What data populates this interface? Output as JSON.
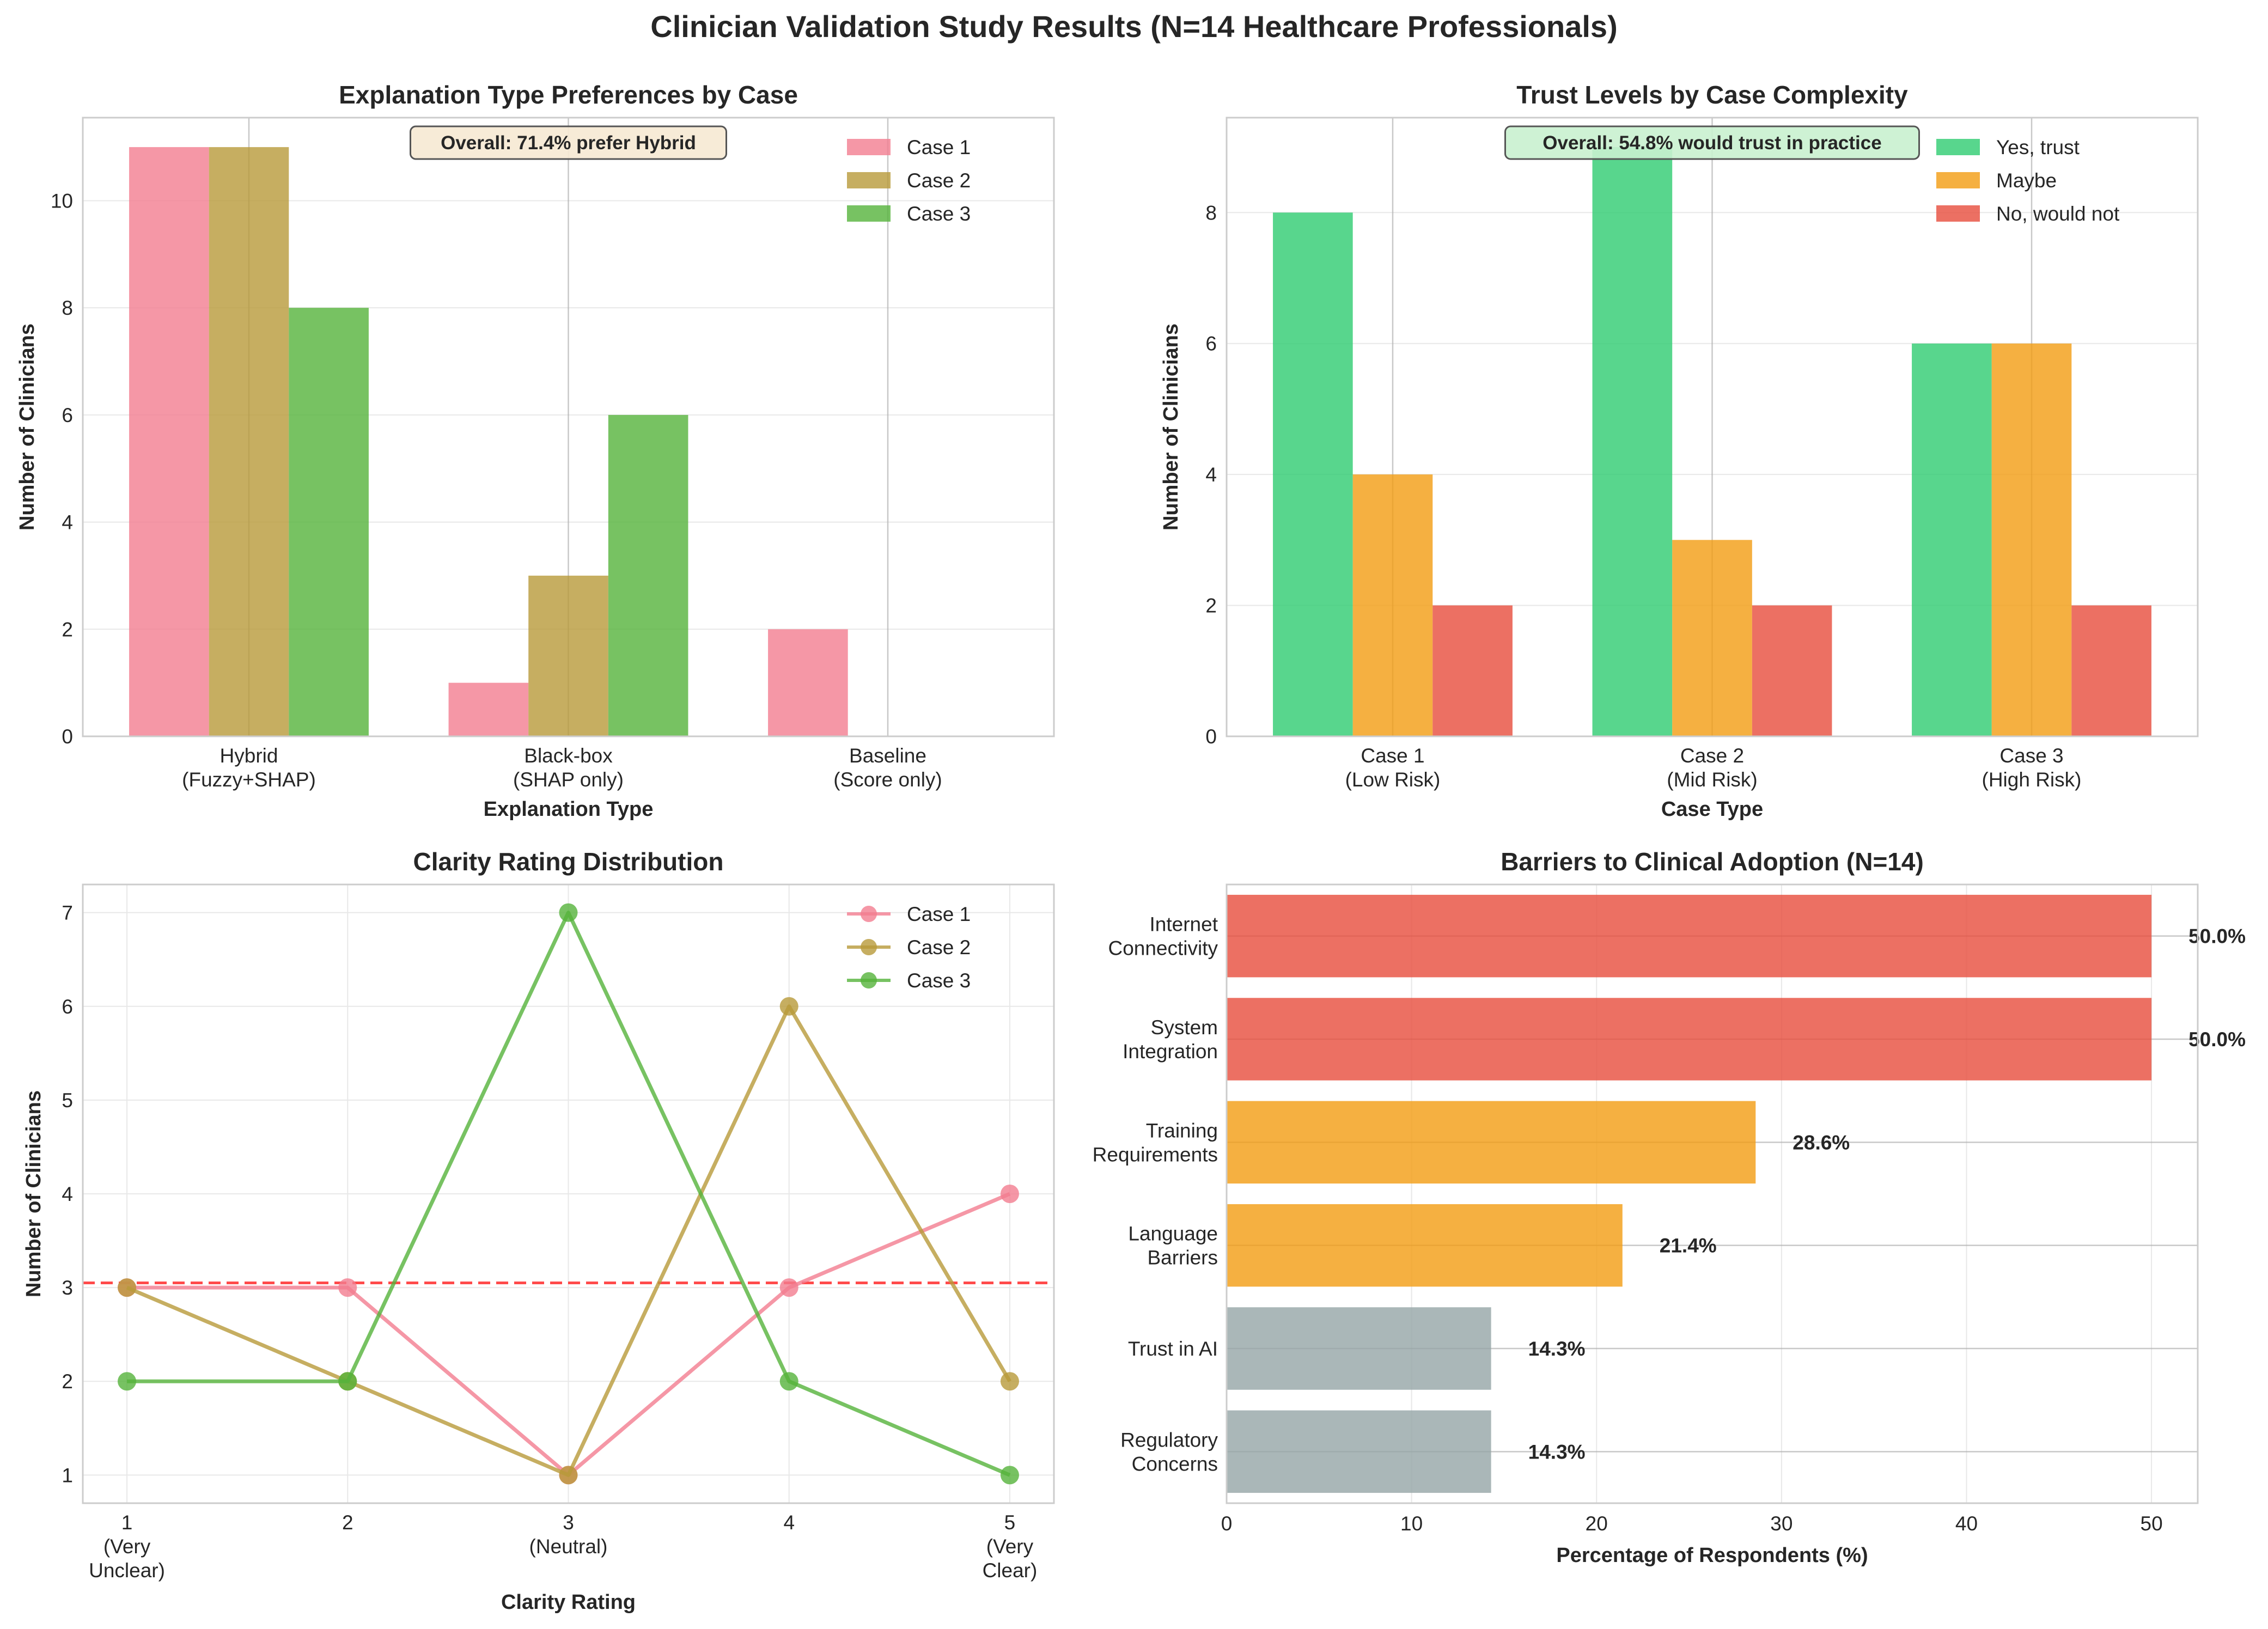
{
  "figure": {
    "title": "Clinician Validation Study Results (N=14 Healthcare Professionals)"
  },
  "chart_data": [
    {
      "type": "bar",
      "title": "Explanation Type Preferences by Case",
      "xlabel": "Explanation Type",
      "ylabel": "Number of Clinicians",
      "categories": [
        "Hybrid\n(Fuzzy+SHAP)",
        "Black-box\n(SHAP only)",
        "Baseline\n(Score only)"
      ],
      "series": [
        {
          "name": "Case 1",
          "values": [
            11,
            1,
            2
          ],
          "color": "#f27d90"
        },
        {
          "name": "Case 2",
          "values": [
            11,
            3,
            0
          ],
          "color": "#b89a3a"
        },
        {
          "name": "Case 3",
          "values": [
            8,
            6,
            0
          ],
          "color": "#55b33b"
        }
      ],
      "ylim": [
        0,
        11.55
      ],
      "yticks": [
        0,
        2,
        4,
        6,
        8,
        10
      ],
      "annotation": {
        "text": "Overall: 71.4% prefer Hybrid",
        "bg": "#f6e9d3"
      },
      "legend": "top-right"
    },
    {
      "type": "bar",
      "title": "Trust Levels by Case Complexity",
      "xlabel": "Case Type",
      "ylabel": "Number of Clinicians",
      "categories": [
        "Case 1\n(Low Risk)",
        "Case 2\n(Mid Risk)",
        "Case 3\n(High Risk)"
      ],
      "series": [
        {
          "name": "Yes, trust",
          "values": [
            8,
            9,
            6
          ],
          "color": "#2ecc71"
        },
        {
          "name": "Maybe",
          "values": [
            4,
            3,
            6
          ],
          "color": "#f39c12"
        },
        {
          "name": "No, would not",
          "values": [
            2,
            2,
            2
          ],
          "color": "#e74c3c"
        }
      ],
      "ylim": [
        0,
        9.45
      ],
      "yticks": [
        0,
        2,
        4,
        6,
        8
      ],
      "annotation": {
        "text": "Overall: 54.8% would trust in practice",
        "bg": "#c9f1cf"
      },
      "legend": "top-right"
    },
    {
      "type": "line",
      "title": "Clarity Rating Distribution",
      "xlabel": "Clarity Rating",
      "ylabel": "Number of Clinicians",
      "x": [
        1,
        2,
        3,
        4,
        5
      ],
      "xticklabels": [
        "1\n(Very\nUnclear)",
        "2",
        "3\n(Neutral)",
        "4",
        "5\n(Very\nClear)"
      ],
      "series": [
        {
          "name": "Case 1",
          "values": [
            3,
            3,
            1,
            3,
            4
          ],
          "color": "#f27d90"
        },
        {
          "name": "Case 2",
          "values": [
            3,
            2,
            1,
            6,
            2
          ],
          "color": "#b89a3a"
        },
        {
          "name": "Case 3",
          "values": [
            2,
            2,
            7,
            2,
            1
          ],
          "color": "#55b33b"
        }
      ],
      "reference_line": {
        "y": 3.05,
        "color": "#ff2b2b",
        "style": "dashed"
      },
      "xlim": [
        0.8,
        5.2
      ],
      "ylim": [
        0.7,
        7.3
      ],
      "yticks": [
        1,
        2,
        3,
        4,
        5,
        6,
        7
      ],
      "legend": "top-right"
    },
    {
      "type": "bar",
      "orientation": "horizontal",
      "title": "Barriers to Clinical Adoption (N=14)",
      "xlabel": "Percentage of Respondents (%)",
      "ylabel": "",
      "categories": [
        "Internet\nConnectivity",
        "System\nIntegration",
        "Training\nRequirements",
        "Language\nBarriers",
        "Trust in AI",
        "Regulatory\nConcerns"
      ],
      "values": [
        50.0,
        50.0,
        28.6,
        21.4,
        14.3,
        14.3
      ],
      "value_labels": [
        "50.0%",
        "50.0%",
        "28.6%",
        "21.4%",
        "14.3%",
        "14.3%"
      ],
      "colors": [
        "#e74c3c",
        "#e74c3c",
        "#f39c12",
        "#f39c12",
        "#95a5a6",
        "#95a5a6"
      ],
      "xlim": [
        0,
        52.5
      ],
      "xticks": [
        0,
        10,
        20,
        30,
        40,
        50
      ]
    }
  ]
}
